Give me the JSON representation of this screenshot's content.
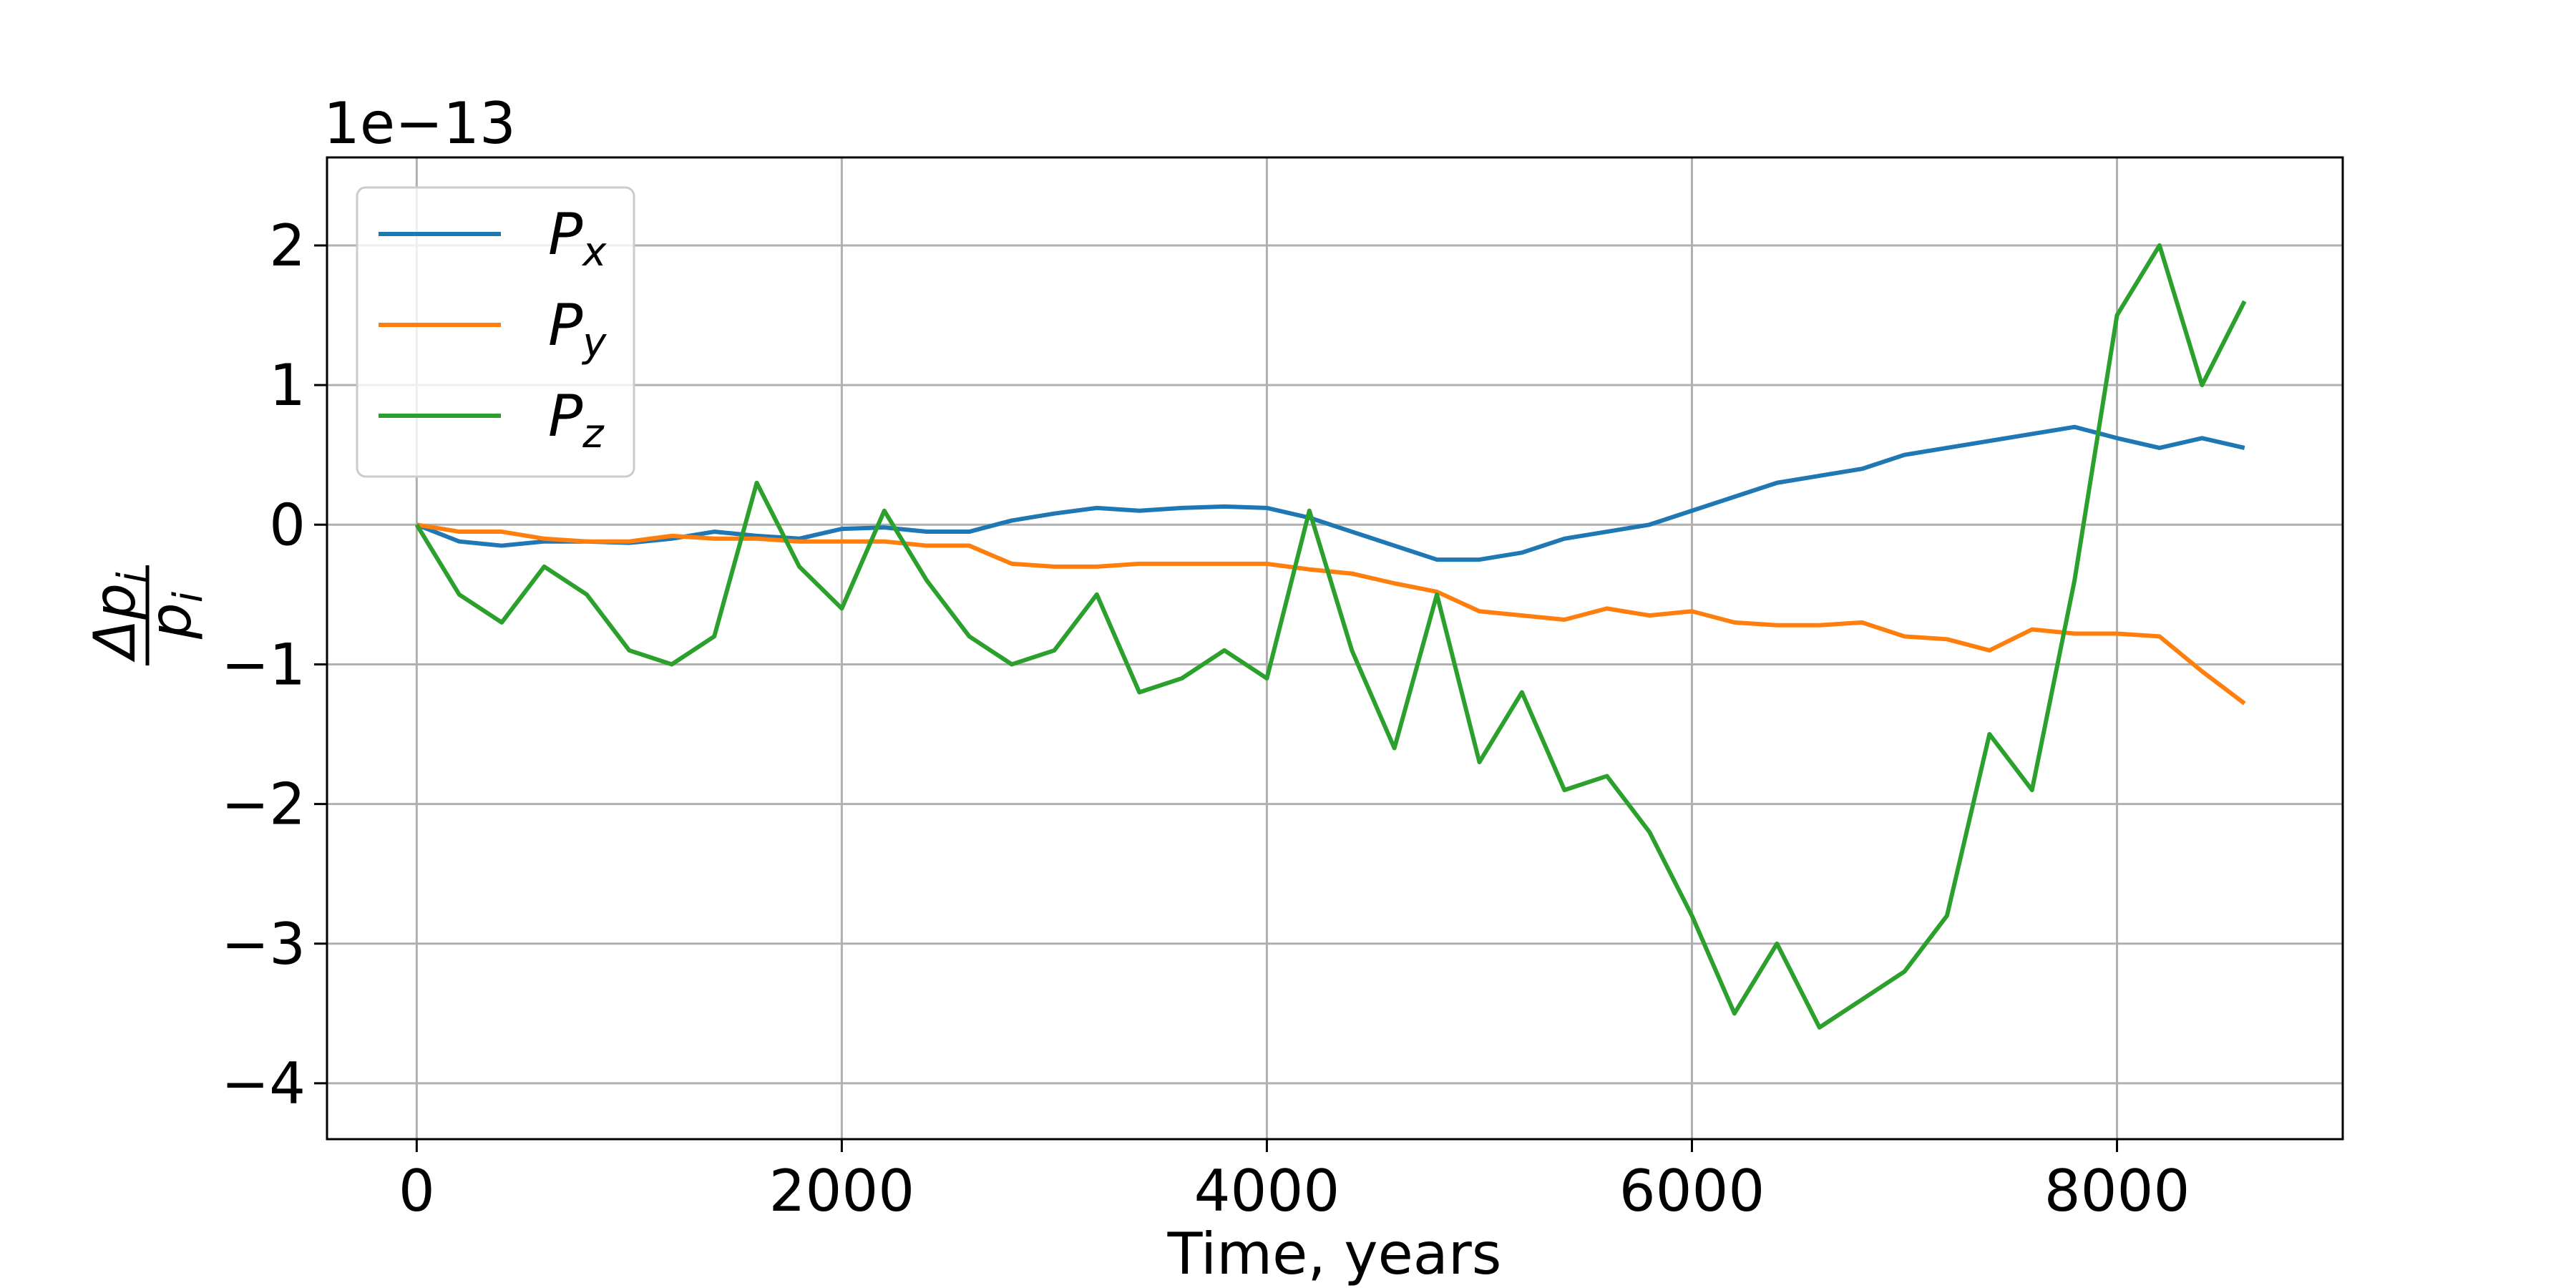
{
  "chart_data": {
    "type": "line",
    "offset_text": "1e−13",
    "xlabel": "Time, years",
    "ylabel": {
      "numerator": "Δp",
      "subscript": "i",
      "denominator": "p"
    },
    "x": [
      0,
      200,
      400,
      600,
      800,
      1000,
      1200,
      1400,
      1600,
      1800,
      2000,
      2200,
      2400,
      2600,
      2800,
      3000,
      3200,
      3400,
      3600,
      3800,
      4000,
      4200,
      4400,
      4600,
      4800,
      5000,
      5200,
      5400,
      5600,
      5800,
      6000,
      6200,
      6400,
      6600,
      6800,
      7000,
      7200,
      7400,
      7600,
      7800,
      8000,
      8200,
      8400,
      8600
    ],
    "series": [
      {
        "name": "Px",
        "color": "#1f77b4",
        "values": [
          0,
          -0.12,
          -0.15,
          -0.12,
          -0.12,
          -0.13,
          -0.1,
          -0.05,
          -0.08,
          -0.1,
          -0.03,
          -0.02,
          -0.05,
          -0.05,
          0.03,
          0.08,
          0.12,
          0.1,
          0.12,
          0.13,
          0.12,
          0.05,
          -0.05,
          -0.15,
          -0.25,
          -0.25,
          -0.2,
          -0.1,
          -0.05,
          0.0,
          0.1,
          0.2,
          0.3,
          0.35,
          0.4,
          0.5,
          0.55,
          0.6,
          0.65,
          0.7,
          0.62,
          0.55,
          0.62,
          0.55
        ]
      },
      {
        "name": "Py",
        "color": "#ff7f0e",
        "values": [
          0,
          -0.05,
          -0.05,
          -0.1,
          -0.12,
          -0.12,
          -0.08,
          -0.1,
          -0.1,
          -0.12,
          -0.12,
          -0.12,
          -0.15,
          -0.15,
          -0.28,
          -0.3,
          -0.3,
          -0.28,
          -0.28,
          -0.28,
          -0.28,
          -0.32,
          -0.35,
          -0.42,
          -0.48,
          -0.62,
          -0.65,
          -0.68,
          -0.6,
          -0.65,
          -0.62,
          -0.7,
          -0.72,
          -0.72,
          -0.7,
          -0.8,
          -0.82,
          -0.9,
          -0.75,
          -0.78,
          -0.78,
          -0.8,
          -1.05,
          -1.28
        ]
      },
      {
        "name": "Pz",
        "color": "#2ca02c",
        "values": [
          0,
          -0.5,
          -0.7,
          -0.3,
          -0.5,
          -0.9,
          -1.0,
          -0.8,
          0.3,
          -0.3,
          -0.6,
          0.1,
          -0.4,
          -0.8,
          -1.0,
          -0.9,
          -0.5,
          -1.2,
          -1.1,
          -0.9,
          -1.1,
          0.1,
          -0.9,
          -1.6,
          -0.5,
          -1.7,
          -1.2,
          -1.9,
          -1.8,
          -2.2,
          -2.8,
          -3.5,
          -3.0,
          -3.6,
          -3.4,
          -3.2,
          -2.8,
          -1.5,
          -1.9,
          -0.4,
          1.5,
          2.0,
          1.0,
          1.6
        ]
      }
    ],
    "xlim": [
      -422,
      9062
    ],
    "xticks": [
      0,
      2000,
      4000,
      6000,
      8000
    ],
    "ylim": [
      -4.4,
      2.63
    ],
    "yticks": [
      -4,
      -3,
      -2,
      -1,
      0,
      1,
      2
    ],
    "grid": true,
    "legend": "upper left"
  }
}
